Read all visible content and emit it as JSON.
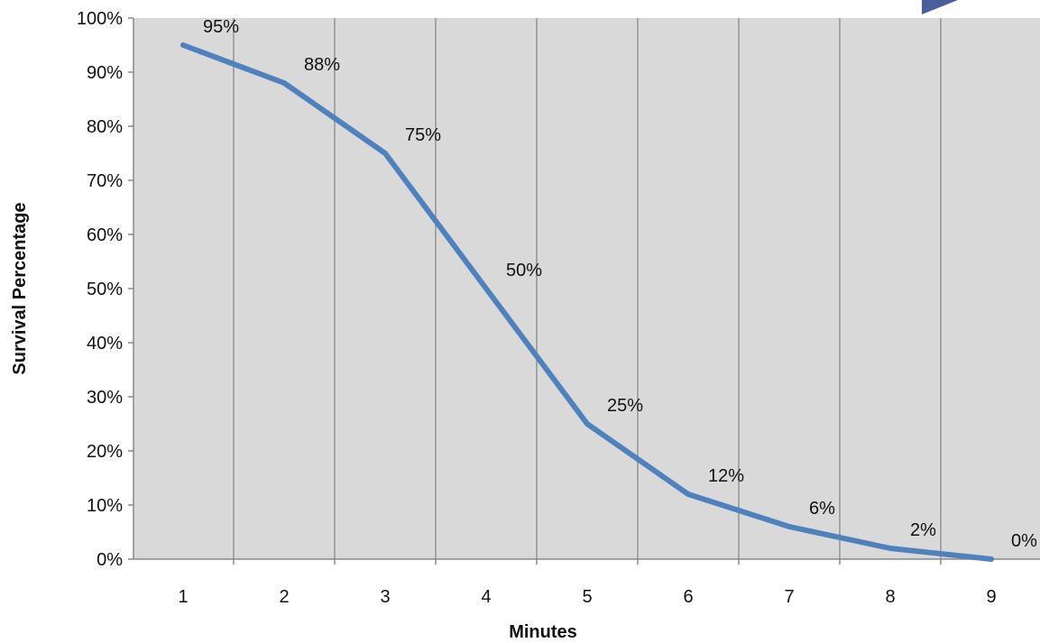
{
  "chart_data": {
    "type": "line",
    "title": "",
    "xlabel": "Minutes",
    "ylabel": "Survival Percentage",
    "x": [
      1,
      2,
      3,
      4,
      5,
      6,
      7,
      8,
      9
    ],
    "categories": [
      "1",
      "2",
      "3",
      "4",
      "5",
      "6",
      "7",
      "8",
      "9"
    ],
    "series": [
      {
        "values": [
          95,
          88,
          75,
          50,
          25,
          12,
          6,
          2,
          0
        ],
        "labels": [
          "95%",
          "88%",
          "75%",
          "50%",
          "25%",
          "12%",
          "6%",
          "2%",
          "0%"
        ],
        "color": "#4f81bd"
      }
    ],
    "ylim": [
      0,
      100
    ],
    "yticks": [
      0,
      10,
      20,
      30,
      40,
      50,
      60,
      70,
      80,
      90,
      100
    ],
    "ytick_labels": [
      "0%",
      "10%",
      "20%",
      "30%",
      "40%",
      "50%",
      "60%",
      "70%",
      "80%",
      "90%",
      "100%"
    ],
    "grid": {
      "vertical": true,
      "horizontal": false
    },
    "legend": "none",
    "colors": {
      "plot_background": "#d9d9d9",
      "gridline": "#808080",
      "axis": "#888888"
    }
  }
}
